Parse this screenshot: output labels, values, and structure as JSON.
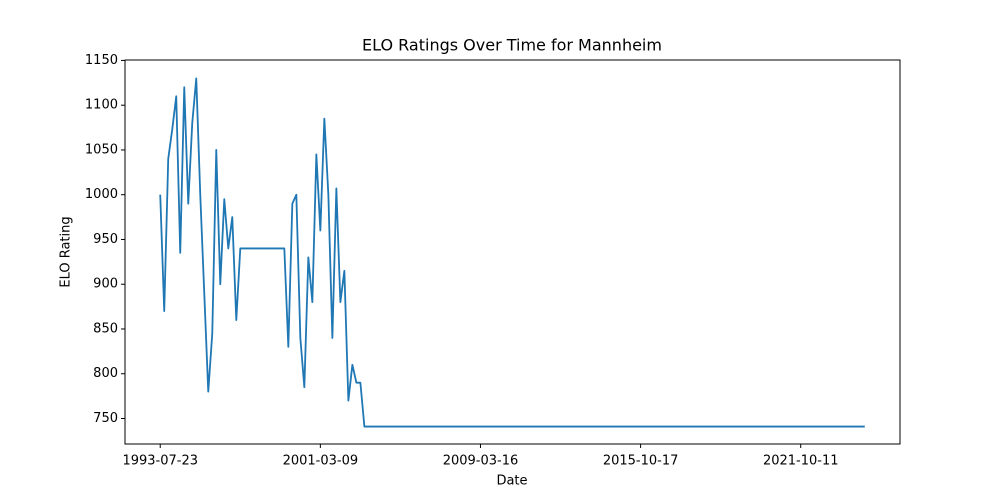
{
  "chart_data": {
    "type": "line",
    "title": "ELO Ratings Over Time for Mannheim",
    "x_label": "Date",
    "y_label": "ELO Rating",
    "categories": [
      "1993-07-23",
      null,
      null,
      null,
      null,
      null,
      null,
      null,
      null,
      null,
      null,
      null,
      null,
      null,
      null,
      null,
      null,
      null,
      null,
      null,
      null,
      null,
      null,
      null,
      null,
      null,
      null,
      null,
      null,
      null,
      null,
      null,
      null,
      null,
      null,
      null,
      null,
      null,
      null,
      null,
      "2001-03-09",
      null,
      null,
      null,
      null,
      null,
      null,
      null,
      null,
      null,
      null,
      null,
      null,
      null,
      null,
      null,
      null,
      null,
      null,
      null,
      null,
      null,
      null,
      null,
      null,
      null,
      null,
      null,
      null,
      null,
      null,
      null,
      null,
      null,
      null,
      null,
      null,
      null,
      null,
      null,
      "2009-03-16",
      null,
      null,
      null,
      null,
      null,
      null,
      null,
      null,
      null,
      null,
      null,
      null,
      null,
      null,
      null,
      null,
      null,
      null,
      null,
      null,
      null,
      null,
      null,
      null,
      null,
      null,
      null,
      null,
      null,
      null,
      null,
      null,
      null,
      null,
      null,
      null,
      null,
      null,
      null,
      "2015-10-17",
      null,
      null,
      null,
      null,
      null,
      null,
      null,
      null,
      null,
      null,
      null,
      null,
      null,
      null,
      null,
      null,
      null,
      null,
      null,
      null,
      null,
      null,
      null,
      null,
      null,
      null,
      null,
      null,
      null,
      null,
      null,
      null,
      null,
      null,
      null,
      null,
      null,
      null,
      null,
      "2021-10-11",
      null,
      null,
      null,
      null,
      null,
      null,
      null,
      null,
      null,
      null,
      null,
      null,
      null,
      null,
      null,
      null
    ],
    "values": [
      1000,
      870,
      1040,
      1073,
      1110,
      935,
      1120,
      990,
      1080,
      1130,
      1000,
      890,
      780,
      845,
      1050,
      900,
      995,
      940,
      975,
      860,
      940,
      940,
      940,
      940,
      940,
      940,
      940,
      940,
      940,
      940,
      940,
      940,
      830,
      990,
      1000,
      840,
      785,
      930,
      880,
      1045,
      960,
      1085,
      1000,
      840,
      1007,
      880,
      915,
      770,
      810,
      790,
      790,
      741,
      741,
      741,
      741,
      741,
      741,
      741,
      741,
      741,
      741,
      741,
      741,
      741,
      741,
      741,
      741,
      741,
      741,
      741,
      741,
      741,
      741,
      741,
      741,
      741,
      741,
      741,
      741,
      741,
      741,
      741,
      741,
      741,
      741,
      741,
      741,
      741,
      741,
      741,
      741,
      741,
      741,
      741,
      741,
      741,
      741,
      741,
      741,
      741,
      741,
      741,
      741,
      741,
      741,
      741,
      741,
      741,
      741,
      741,
      741,
      741,
      741,
      741,
      741,
      741,
      741,
      741,
      741,
      741,
      741,
      741,
      741,
      741,
      741,
      741,
      741,
      741,
      741,
      741,
      741,
      741,
      741,
      741,
      741,
      741,
      741,
      741,
      741,
      741,
      741,
      741,
      741,
      741,
      741,
      741,
      741,
      741,
      741,
      741,
      741,
      741,
      741,
      741,
      741,
      741,
      741,
      741,
      741,
      741,
      741,
      741,
      741,
      741,
      741,
      741,
      741,
      741,
      741,
      741,
      741,
      741,
      741,
      741,
      741,
      741,
      741
    ],
    "color": "#1f77b4",
    "ylim": [
      721.5,
      1150.5
    ],
    "yticks": [
      750,
      800,
      850,
      900,
      950,
      1000,
      1050,
      1100,
      1150
    ],
    "grid": false
  }
}
